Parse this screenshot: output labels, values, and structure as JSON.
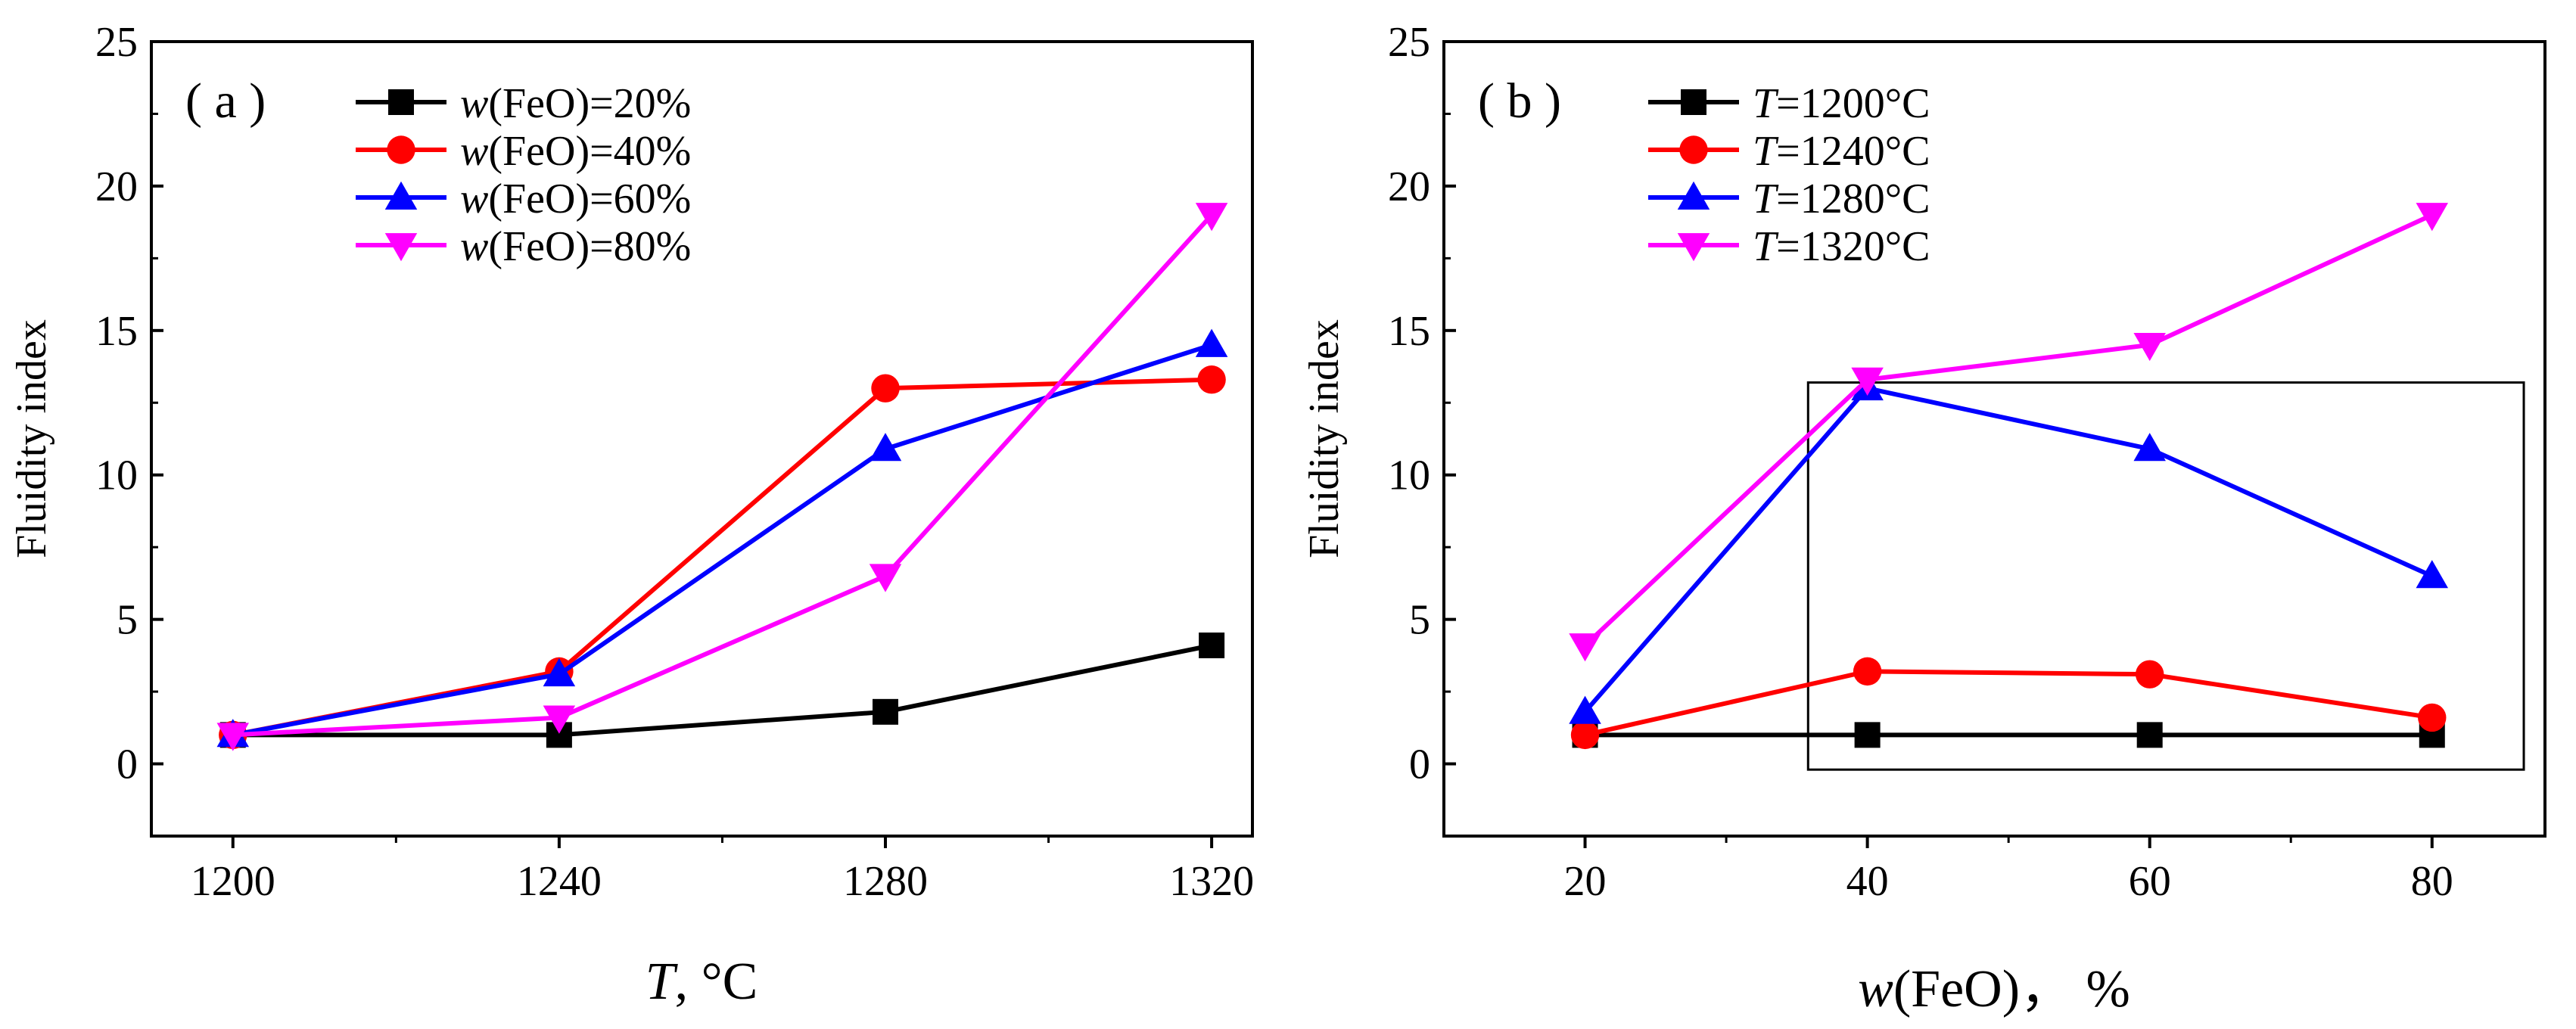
{
  "chart_data": [
    {
      "type": "line",
      "panel_label": "( a )",
      "xlabel_var": "T",
      "xlabel_rest": ", °C",
      "ylabel": "Fluidity index",
      "ylim": [
        -2.5,
        25
      ],
      "yticks": [
        0,
        5,
        10,
        15,
        20,
        25
      ],
      "xlim": [
        1190,
        1325
      ],
      "x": [
        1200,
        1240,
        1280,
        1320
      ],
      "xtick_labels": [
        "1200",
        "1240",
        "1280",
        "1320"
      ],
      "legend_position": "top-left",
      "series": [
        {
          "var": "w",
          "name": "(FeO)=20%",
          "marker": "square",
          "color": "#000000",
          "values": [
            1.0,
            1.0,
            1.8,
            4.1
          ]
        },
        {
          "var": "w",
          "name": "(FeO)=40%",
          "marker": "circle",
          "color": "#ff0000",
          "values": [
            1.0,
            3.2,
            13.0,
            13.3
          ]
        },
        {
          "var": "w",
          "name": "(FeO)=60%",
          "marker": "triangle-up",
          "color": "#0000ff",
          "values": [
            1.0,
            3.1,
            10.9,
            14.5
          ]
        },
        {
          "var": "w",
          "name": "(FeO)=80%",
          "marker": "triangle-down",
          "color": "#ff00ff",
          "values": [
            1.0,
            1.6,
            6.5,
            19.0
          ]
        }
      ]
    },
    {
      "type": "line",
      "panel_label": "( b )",
      "xlabel_var": "w",
      "xlabel_rest": "(FeO)， %",
      "ylabel": "Fluidity index",
      "ylim": [
        -2.5,
        25
      ],
      "yticks": [
        0,
        5,
        10,
        15,
        20,
        25
      ],
      "xlim": [
        10,
        88
      ],
      "x": [
        20,
        40,
        60,
        80
      ],
      "xtick_labels": [
        "20",
        "40",
        "60",
        "80"
      ],
      "legend_position": "top-left",
      "highlight_box": {
        "x_range": [
          35.8,
          86.5
        ],
        "y_range": [
          -0.2,
          13.2
        ]
      },
      "series": [
        {
          "var": "T",
          "name": "=1200°C",
          "marker": "square",
          "color": "#000000",
          "values": [
            1.0,
            1.0,
            1.0,
            1.0
          ]
        },
        {
          "var": "T",
          "name": "=1240°C",
          "marker": "circle",
          "color": "#ff0000",
          "values": [
            1.0,
            3.2,
            3.1,
            1.6
          ]
        },
        {
          "var": "T",
          "name": "=1280°C",
          "marker": "triangle-up",
          "color": "#0000ff",
          "values": [
            1.8,
            13.0,
            10.9,
            6.5
          ]
        },
        {
          "var": "T",
          "name": "=1320°C",
          "marker": "triangle-down",
          "color": "#ff00ff",
          "values": [
            4.1,
            13.3,
            14.5,
            19.0
          ]
        }
      ]
    }
  ]
}
